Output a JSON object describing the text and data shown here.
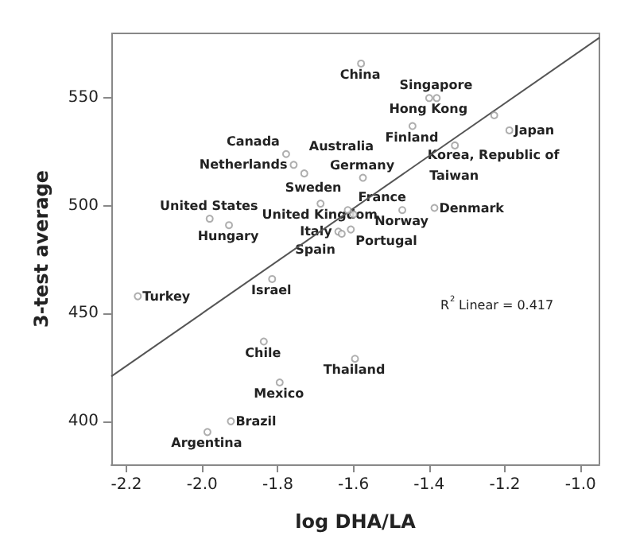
{
  "chart_data": {
    "type": "scatter",
    "xlabel": "log DHA/LA",
    "ylabel": "3-test average",
    "xlim": [
      -2.24,
      -0.95
    ],
    "ylim": [
      380,
      580
    ],
    "xticks": [
      -2.2,
      {
        "value": -2,
        "label": "-2.0"
      },
      -1.8,
      -1.6,
      -1.4,
      -1.2,
      {
        "value": -1,
        "label": "-1.0"
      }
    ],
    "yticks": [
      400,
      450,
      500,
      550
    ],
    "grid": false,
    "marker": "circle",
    "series": [
      {
        "color": "#9a9a9a",
        "x": [
          -1.58,
          -1.4,
          -1.38,
          -1.228,
          -1.188,
          -1.444,
          -1.332,
          -1.575,
          -1.471,
          -1.386,
          -1.615,
          -1.6,
          -1.607,
          -1.64,
          -1.631,
          -1.73,
          -1.758,
          -1.778,
          -1.687,
          -1.98,
          -1.929,
          -1.815,
          -2.17,
          -1.837,
          -1.795,
          -1.924,
          -1.986,
          -1.596
        ],
        "values": [
          566,
          550,
          550,
          542,
          535,
          537,
          528,
          513,
          498,
          499,
          498,
          496,
          489,
          488,
          487,
          515,
          519,
          524,
          501,
          494,
          491,
          466,
          458,
          437,
          418,
          400,
          395,
          429
        ]
      },
      {
        "type": "line",
        "marker": "none",
        "color": "#555555",
        "x": [
          -2.24,
          -0.95
        ],
        "values": [
          420.8,
          578
        ]
      }
    ],
    "annotations": [
      {
        "text": "China",
        "x": -1.58,
        "y": 566
      },
      {
        "text": "Hong Kong",
        "x": -1.4,
        "y": 550
      },
      {
        "text": "Singapore",
        "x": -1.38,
        "y": 550
      },
      {
        "text": "Korea, Republic of",
        "x": -1.228,
        "y": 542
      },
      {
        "text": "Japan",
        "x": -1.188,
        "y": 535
      },
      {
        "text": "Finland",
        "x": -1.444,
        "y": 537
      },
      {
        "text": "Taiwan",
        "x": -1.332,
        "y": 528
      },
      {
        "text": "Germany",
        "x": -1.575,
        "y": 513
      },
      {
        "text": "Norway",
        "x": -1.471,
        "y": 498
      },
      {
        "text": "Denmark",
        "x": -1.386,
        "y": 499
      },
      {
        "text": "Sweden",
        "x": -1.615,
        "y": 498
      },
      {
        "text": "France",
        "x": -1.6,
        "y": 496
      },
      {
        "text": "Portugal",
        "x": -1.607,
        "y": 489
      },
      {
        "text": "Italy",
        "x": -1.64,
        "y": 488
      },
      {
        "text": "Spain",
        "x": -1.631,
        "y": 487
      },
      {
        "text": "Australia",
        "x": -1.73,
        "y": 515
      },
      {
        "text": "Netherlands",
        "x": -1.758,
        "y": 519
      },
      {
        "text": "Canada",
        "x": -1.778,
        "y": 524
      },
      {
        "text": "United Kingdom",
        "x": -1.687,
        "y": 501
      },
      {
        "text": "United States",
        "x": -1.98,
        "y": 494
      },
      {
        "text": "Hungary",
        "x": -1.929,
        "y": 491
      },
      {
        "text": "Israel",
        "x": -1.815,
        "y": 466
      },
      {
        "text": "Turkey",
        "x": -2.17,
        "y": 458
      },
      {
        "text": "Chile",
        "x": -1.837,
        "y": 437
      },
      {
        "text": "Mexico",
        "x": -1.795,
        "y": 418
      },
      {
        "text": "Brazil",
        "x": -1.924,
        "y": 400
      },
      {
        "text": "Argentina",
        "x": -1.986,
        "y": 395
      },
      {
        "text": "Thailand",
        "x": -1.596,
        "y": 429
      },
      "R$^{2}$ Linear = 0.417"
    ]
  }
}
